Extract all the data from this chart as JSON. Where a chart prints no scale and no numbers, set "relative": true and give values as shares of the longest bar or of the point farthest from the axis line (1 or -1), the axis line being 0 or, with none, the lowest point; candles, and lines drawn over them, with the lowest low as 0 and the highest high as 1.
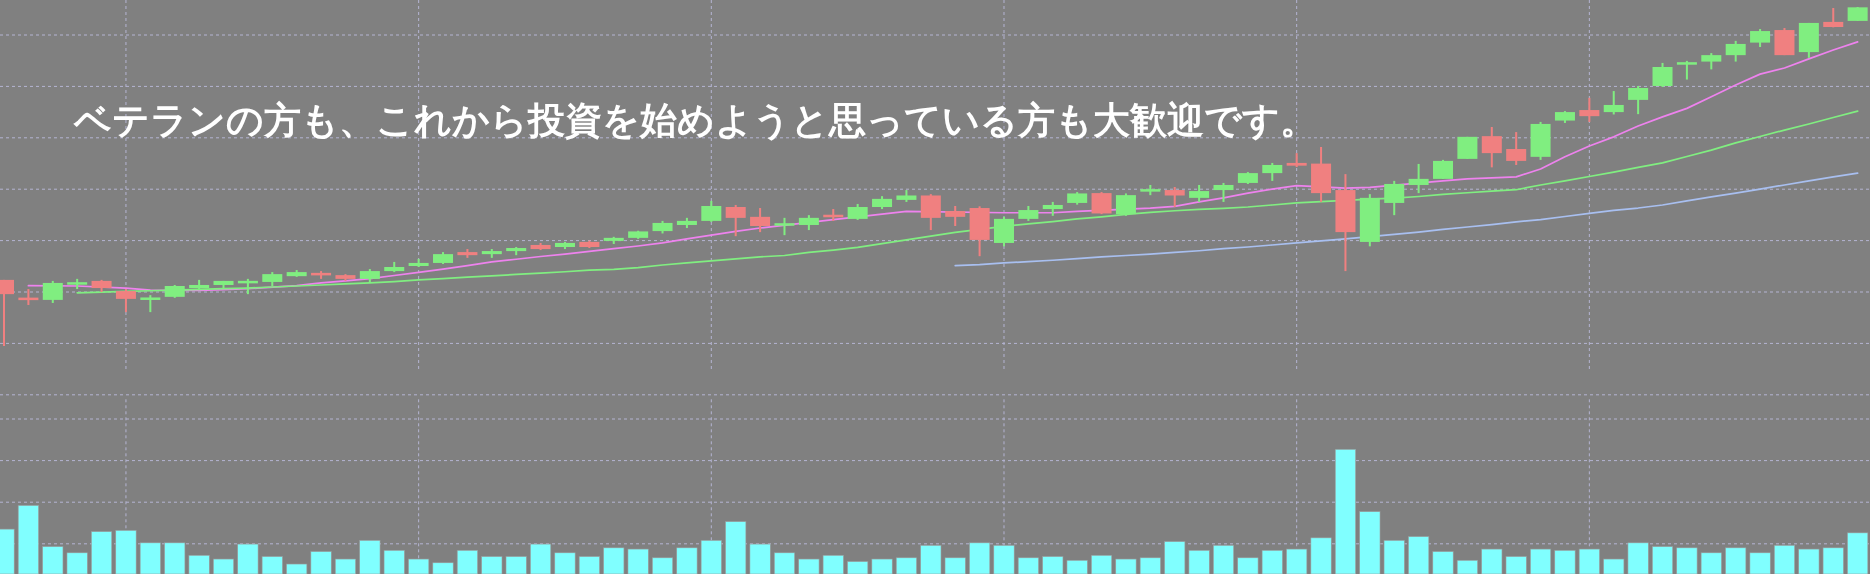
{
  "chart_data": [
    {
      "type": "candlestick",
      "relative": true,
      "grid": true,
      "categories": [
        null,
        null,
        null,
        null,
        null,
        null,
        null,
        null,
        null,
        null,
        null,
        null,
        null,
        null,
        null,
        null,
        null,
        null,
        null,
        null,
        null,
        null,
        null,
        null,
        null,
        null,
        null,
        null,
        null,
        null,
        null,
        null,
        null,
        null,
        null,
        null,
        null,
        null,
        null,
        null,
        null,
        null,
        null,
        null,
        null,
        null,
        null,
        null,
        null,
        null,
        null,
        null,
        null,
        null,
        null,
        null,
        null,
        null,
        null,
        null,
        null,
        null,
        null,
        null,
        null,
        null,
        null,
        null,
        null,
        null,
        null,
        null,
        null,
        null,
        null,
        null,
        null
      ],
      "ohlc": [
        [
          0.195,
          0.195,
          0,
          0.153
        ],
        [
          0.142,
          0.168,
          0.121,
          0.136
        ],
        [
          0.136,
          0.192,
          0.127,
          0.186
        ],
        [
          0.183,
          0.198,
          0.168,
          0.186
        ],
        [
          0.192,
          0.195,
          0.159,
          0.171
        ],
        [
          0.162,
          0.168,
          0.1,
          0.139
        ],
        [
          0.137,
          0.15,
          0.1,
          0.142
        ],
        [
          0.145,
          0.18,
          0.142,
          0.177
        ],
        [
          0.171,
          0.195,
          0.165,
          0.18
        ],
        [
          0.18,
          0.192,
          0.168,
          0.192
        ],
        [
          0.186,
          0.198,
          0.153,
          0.191
        ],
        [
          0.189,
          0.218,
          0.177,
          0.212
        ],
        [
          0.206,
          0.224,
          0.204,
          0.218
        ],
        [
          0.215,
          0.221,
          0.198,
          0.209
        ],
        [
          0.209,
          0.212,
          0.192,
          0.198
        ],
        [
          0.198,
          0.227,
          0.186,
          0.221
        ],
        [
          0.221,
          0.248,
          0.218,
          0.233
        ],
        [
          0.236,
          0.257,
          0.233,
          0.245
        ],
        [
          0.245,
          0.277,
          0.242,
          0.271
        ],
        [
          0.277,
          0.286,
          0.26,
          0.268
        ],
        [
          0.271,
          0.286,
          0.26,
          0.28
        ],
        [
          0.28,
          0.292,
          0.268,
          0.289
        ],
        [
          0.298,
          0.304,
          0.283,
          0.286
        ],
        [
          0.292,
          0.307,
          0.286,
          0.304
        ],
        [
          0.307,
          0.311,
          0.289,
          0.292
        ],
        [
          0.31,
          0.322,
          0.301,
          0.319
        ],
        [
          0.319,
          0.34,
          0.316,
          0.338
        ],
        [
          0.339,
          0.369,
          0.332,
          0.363
        ],
        [
          0.357,
          0.378,
          0.348,
          0.369
        ],
        [
          0.369,
          0.428,
          0.366,
          0.413
        ],
        [
          0.41,
          0.416,
          0.324,
          0.378
        ],
        [
          0.381,
          0.407,
          0.336,
          0.354
        ],
        [
          0.357,
          0.378,
          0.327,
          0.36
        ],
        [
          0.357,
          0.386,
          0.342,
          0.378
        ],
        [
          0.386,
          0.404,
          0.369,
          0.381
        ],
        [
          0.375,
          0.419,
          0.372,
          0.41
        ],
        [
          0.41,
          0.442,
          0.404,
          0.434
        ],
        [
          0.431,
          0.46,
          0.425,
          0.444
        ],
        [
          0.444,
          0.448,
          0.342,
          0.378
        ],
        [
          0.398,
          0.413,
          0.354,
          0.381
        ],
        [
          0.407,
          0.412,
          0.265,
          0.313
        ],
        [
          0.304,
          0.381,
          0.294,
          0.375
        ],
        [
          0.375,
          0.413,
          0.369,
          0.401
        ],
        [
          0.404,
          0.425,
          0.384,
          0.416
        ],
        [
          0.422,
          0.454,
          0.417,
          0.45
        ],
        [
          0.451,
          0.454,
          0.389,
          0.391
        ],
        [
          0.389,
          0.45,
          0.384,
          0.445
        ],
        [
          0.457,
          0.475,
          0.445,
          0.461
        ],
        [
          0.46,
          0.469,
          0.41,
          0.444
        ],
        [
          0.437,
          0.475,
          0.425,
          0.457
        ],
        [
          0.46,
          0.481,
          0.425,
          0.475
        ],
        [
          0.481,
          0.513,
          0.478,
          0.51
        ],
        [
          0.51,
          0.54,
          0.487,
          0.534
        ],
        [
          0.54,
          0.569,
          0.528,
          0.532
        ],
        [
          0.538,
          0.587,
          0.425,
          0.451
        ],
        [
          0.46,
          0.507,
          0.221,
          0.336
        ],
        [
          0.307,
          0.448,
          0.294,
          0.437
        ],
        [
          0.422,
          0.487,
          0.386,
          0.478
        ],
        [
          0.475,
          0.537,
          0.451,
          0.493
        ],
        [
          0.493,
          0.549,
          0.493,
          0.546
        ],
        [
          0.552,
          0.617,
          0.552,
          0.617
        ],
        [
          0.619,
          0.646,
          0.527,
          0.569
        ],
        [
          0.581,
          0.631,
          0.534,
          0.546
        ],
        [
          0.558,
          0.661,
          0.549,
          0.655
        ],
        [
          0.665,
          0.693,
          0.658,
          0.69
        ],
        [
          0.696,
          0.732,
          0.661,
          0.678
        ],
        [
          0.69,
          0.752,
          0.683,
          0.711
        ],
        [
          0.726,
          0.767,
          0.684,
          0.761
        ],
        [
          0.767,
          0.835,
          0.764,
          0.823
        ],
        [
          0.832,
          0.841,
          0.786,
          0.835
        ],
        [
          0.839,
          0.864,
          0.816,
          0.858
        ],
        [
          0.858,
          0.9,
          0.839,
          0.891
        ],
        [
          0.895,
          0.935,
          0.882,
          0.929
        ],
        [
          0.932,
          0.938,
          0.858,
          0.858
        ],
        [
          0.867,
          0.953,
          0.85,
          0.953
        ],
        [
          0.956,
          0.997,
          0.94,
          0.941
        ],
        [
          0.959,
          1,
          0.959,
          0.999
        ]
      ],
      "series": [
        {
          "type": "line",
          "color": "#ee82ee",
          "values": [
            null,
            0.178,
            null,
            0.177,
            null,
            0.171,
            0.165,
            null,
            0.164,
            0.166,
            0.169,
            null,
            0.178,
            0.186,
            0.192,
            0.199,
            0.208,
            0.217,
            0.227,
            0.237,
            0.248,
            0.256,
            0.264,
            0.271,
            0.279,
            0.287,
            0.295,
            0.304,
            0.316,
            0.327,
            0.338,
            0.348,
            null,
            null,
            0.373,
            null,
            0.389,
            0.397,
            null,
            null,
            null,
            0.393,
            null,
            0.393,
            0.397,
            null,
            null,
            0.407,
            0.412,
            0.425,
            0.437,
            0.451,
            0.463,
            0.473,
            null,
            0.466,
            0.468,
            null,
            null,
            0.487,
            0.493,
            0.496,
            0.499,
            0.522,
            0.558,
            0.59,
            0.617,
            0.649,
            0.676,
            0.701,
            0.735,
            0.77,
            0.802,
            0.82,
            0.847,
            0.873,
            0.897
          ]
        },
        {
          "type": "line",
          "color": "#80ee80",
          "values": [
            null,
            null,
            null,
            0.157,
            0.159,
            0.161,
            0.163,
            0.165,
            0.167,
            0.169,
            0.171,
            0.174,
            0.177,
            0.18,
            0.183,
            0.186,
            0.19,
            0.195,
            0.199,
            0.203,
            0.207,
            0.211,
            0.215,
            0.219,
            0.224,
            0.226,
            0.231,
            0.239,
            0.245,
            0.251,
            0.257,
            0.263,
            0.267,
            0.276,
            0.283,
            0.291,
            0.302,
            0.313,
            0.324,
            0.335,
            null,
            0.353,
            0.36,
            0.367,
            0.375,
            0.381,
            0.388,
            0.394,
            0.399,
            0.403,
            0.406,
            0.41,
            0.416,
            0.422,
            0.426,
            null,
            0.433,
            0.436,
            0.441,
            0.447,
            0.452,
            0.457,
            0.461,
            0.475,
            0.487,
            0.5,
            0.513,
            0.527,
            0.54,
            0.559,
            0.578,
            0.599,
            0.618,
            0.637,
            0.655,
            0.674,
            0.693
          ]
        },
        {
          "type": "line",
          "color": "#a8bff0",
          "values": [
            null,
            null,
            null,
            null,
            null,
            null,
            null,
            null,
            null,
            null,
            null,
            null,
            null,
            null,
            null,
            null,
            null,
            null,
            null,
            null,
            null,
            null,
            null,
            null,
            null,
            null,
            null,
            null,
            null,
            null,
            null,
            null,
            null,
            null,
            null,
            null,
            null,
            null,
            null,
            0.237,
            0.24,
            0.245,
            0.249,
            0.253,
            0.258,
            0.263,
            0.267,
            0.271,
            0.276,
            0.281,
            0.287,
            0.292,
            0.298,
            0.304,
            0.31,
            0.316,
            null,
            0.329,
            0.336,
            0.344,
            0.351,
            0.358,
            0.366,
            0.373,
            0.382,
            0.391,
            0.4,
            0.407,
            0.416,
            0.428,
            0.44,
            0.451,
            0.463,
            0.475,
            0.487,
            0.499,
            0.51
          ]
        }
      ],
      "annotations": [
        "ベテランの方も、これから投資を始めようと思っている方も大歓迎です。"
      ]
    },
    {
      "type": "bar",
      "relative": true,
      "grid": true,
      "color": "#80ffff",
      "categories": [
        null,
        null,
        null,
        null,
        null,
        null,
        null,
        null,
        null,
        null,
        null,
        null,
        null,
        null,
        null,
        null,
        null,
        null,
        null,
        null,
        null,
        null,
        null,
        null,
        null,
        null,
        null,
        null,
        null,
        null,
        null,
        null,
        null,
        null,
        null,
        null,
        null,
        null,
        null,
        null,
        null,
        null,
        null,
        null,
        null,
        null,
        null,
        null,
        null,
        null,
        null,
        null,
        null,
        null,
        null,
        null,
        null,
        null,
        null,
        null,
        null,
        null,
        null,
        null,
        null,
        null,
        null,
        null,
        null,
        null,
        null,
        null,
        null,
        null,
        null,
        null,
        null
      ],
      "values": [
        0.36,
        0.55,
        0.22,
        0.17,
        0.34,
        0.35,
        0.25,
        0.25,
        0.15,
        0.12,
        0.24,
        0.14,
        0.08,
        0.18,
        0.12,
        0.27,
        0.19,
        0.12,
        0.09,
        0.19,
        0.14,
        0.14,
        0.24,
        0.17,
        0.14,
        0.21,
        0.2,
        0.13,
        0.21,
        0.27,
        0.42,
        0.24,
        0.17,
        0.12,
        0.15,
        0.1,
        0.12,
        0.13,
        0.23,
        0.13,
        0.25,
        0.23,
        0.13,
        0.14,
        0.11,
        0.15,
        0.12,
        0.13,
        0.26,
        0.19,
        0.23,
        0.13,
        0.19,
        0.2,
        0.29,
        1,
        0.5,
        0.27,
        0.3,
        0.18,
        0.11,
        0.2,
        0.14,
        0.2,
        0.19,
        0.2,
        0.12,
        0.25,
        0.22,
        0.21,
        0.17,
        0.21,
        0.17,
        0.23,
        0.2,
        0.21,
        0.33
      ]
    }
  ]
}
